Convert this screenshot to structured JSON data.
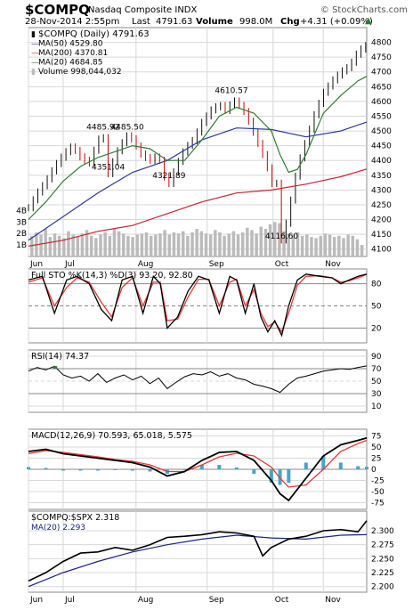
{
  "header": {
    "symbol": "$COMPQ",
    "name": "Nasdaq Composite INDX",
    "watermark": "© StockCharts.com",
    "date": "28-Nov-2014 2:55pm",
    "last_label": "Last",
    "last": "4791.63",
    "volume_label": "Volume",
    "volume": "998.0M",
    "chg_label": "Chg",
    "chg": "+4.31 (+0.09%)",
    "chg_arrow": "▲"
  },
  "colors": {
    "price_up": "#111111",
    "price_down": "#cc0000",
    "ma50": "#2a3a9a",
    "ma200": "#cc2233",
    "ma20": "#2e7d32",
    "volume": "#bbbbbb",
    "sto_k": "#000000",
    "sto_d": "#e53935",
    "rsi": "#000000",
    "rsi_fill": "#2e7d32",
    "macd": "#000000",
    "signal": "#e53935",
    "histogram": "#4aa3c8",
    "ratio": "#000000",
    "ratio_ma": "#1a237e",
    "grid": "#d8d8d8",
    "level_line": "#888888"
  },
  "chart_data": [
    {
      "type": "line",
      "panel": "price",
      "title": "$COMPQ (Daily) 4791.63",
      "x_labels": [
        "Jun",
        "Jul",
        "Aug",
        "Sep",
        "Oct",
        "Nov"
      ],
      "ylim": [
        4075,
        4850
      ],
      "y_ticks": [
        "4100",
        "4150",
        "4200",
        "4250",
        "4300",
        "4350",
        "4400",
        "4450",
        "4500",
        "4550",
        "4600",
        "4650",
        "4700",
        "4750",
        "4800"
      ],
      "volume_ticks": [
        "4B",
        "3B",
        "2B",
        "1B"
      ],
      "legend": [
        {
          "label": "$COMPQ (Daily) 4791.63",
          "marker": "▮"
        },
        {
          "label": "MA(50) 4529.80",
          "marker": "—"
        },
        {
          "label": "MA(200) 4370.81",
          "marker": "—"
        },
        {
          "label": "MA(20) 4684.85",
          "marker": "—"
        },
        {
          "label": "Volume 998,044,032",
          "marker": "▮"
        }
      ],
      "annotations": [
        {
          "text": "4485.92",
          "x": 43,
          "y": 4486
        },
        {
          "text": "4485.50",
          "x": 57,
          "y": 4486
        },
        {
          "text": "4351.04",
          "x": 46,
          "y": 4351
        },
        {
          "text": "4321.89",
          "x": 81,
          "y": 4322
        },
        {
          "text": "4610.57",
          "x": 117,
          "y": 4611
        },
        {
          "text": "4116.60",
          "x": 146,
          "y": 4117
        }
      ],
      "series": [
        {
          "name": "$COMPQ",
          "x": [
            0,
            5,
            10,
            15,
            20,
            25,
            30,
            35,
            40,
            43,
            46,
            50,
            54,
            57,
            60,
            65,
            70,
            75,
            77,
            81,
            85,
            90,
            95,
            100,
            105,
            110,
            115,
            117,
            121,
            125,
            130,
            135,
            138,
            141,
            143,
            146,
            150,
            155,
            160,
            165,
            170,
            175,
            180,
            185,
            190,
            195
          ],
          "values": [
            4240,
            4290,
            4330,
            4380,
            4420,
            4450,
            4410,
            4390,
            4470,
            4486,
            4351,
            4420,
            4460,
            4486,
            4470,
            4420,
            4400,
            4420,
            4355,
            4322,
            4380,
            4440,
            4470,
            4530,
            4570,
            4590,
            4560,
            4611,
            4590,
            4560,
            4490,
            4420,
            4370,
            4310,
            4330,
            4117,
            4230,
            4380,
            4470,
            4560,
            4630,
            4670,
            4700,
            4720,
            4770,
            4792
          ]
        },
        {
          "name": "MA(50)",
          "x": [
            0,
            20,
            40,
            60,
            80,
            100,
            120,
            140,
            160,
            180,
            195
          ],
          "values": [
            4130,
            4210,
            4290,
            4360,
            4400,
            4470,
            4510,
            4505,
            4480,
            4500,
            4530
          ]
        },
        {
          "name": "MA(200)",
          "x": [
            0,
            20,
            40,
            60,
            80,
            100,
            120,
            140,
            160,
            180,
            195
          ],
          "values": [
            4110,
            4130,
            4160,
            4180,
            4220,
            4260,
            4290,
            4300,
            4320,
            4345,
            4371
          ]
        },
        {
          "name": "MA(20)",
          "x": [
            0,
            10,
            20,
            30,
            40,
            50,
            60,
            70,
            80,
            90,
            100,
            110,
            120,
            130,
            140,
            145,
            150,
            155,
            160,
            170,
            180,
            190,
            195
          ],
          "values": [
            4200,
            4260,
            4330,
            4380,
            4410,
            4430,
            4450,
            4440,
            4400,
            4400,
            4470,
            4550,
            4580,
            4560,
            4500,
            4420,
            4360,
            4370,
            4420,
            4560,
            4620,
            4670,
            4685
          ]
        }
      ],
      "volume_values": [
        1.8,
        2.1,
        1.9,
        2.4,
        1.7,
        2.0,
        1.8,
        1.6,
        2.2,
        1.9,
        1.7,
        2.0,
        2.3,
        1.8,
        1.6,
        1.9,
        2.1,
        1.8,
        2.4,
        2.2,
        2.0,
        1.8,
        1.7,
        1.9,
        2.0,
        2.1,
        1.8,
        1.9,
        2.0,
        2.3,
        1.9,
        2.1,
        2.0,
        2.2,
        1.8,
        2.1,
        2.4,
        2.2,
        2.0,
        1.9,
        2.3,
        2.1,
        1.8,
        2.0,
        2.2,
        1.9,
        2.1,
        2.5,
        2.3,
        2.0,
        2.6,
        2.4,
        2.8,
        3.0,
        2.9,
        2.2,
        2.0,
        1.9,
        2.1,
        1.8,
        1.9,
        1.7,
        1.6,
        1.8,
        2.0,
        1.9,
        1.7,
        1.8,
        1.6,
        1.9,
        1.8,
        1.5,
        1.0
      ]
    },
    {
      "type": "line",
      "panel": "stochastic",
      "title": "Full STO %K(14,3) %D(3) 93.20, 92.80",
      "ylim": [
        0,
        100
      ],
      "y_ticks": [
        "80",
        "50",
        "20"
      ],
      "series": [
        {
          "name": "%K",
          "x": [
            0,
            8,
            15,
            22,
            28,
            35,
            42,
            48,
            54,
            60,
            66,
            72,
            76,
            80,
            86,
            92,
            98,
            104,
            110,
            116,
            120,
            125,
            130,
            134,
            138,
            142,
            146,
            150,
            155,
            160,
            168,
            175,
            180,
            185,
            190,
            195
          ],
          "values": [
            85,
            90,
            40,
            85,
            90,
            80,
            45,
            30,
            85,
            90,
            40,
            90,
            80,
            20,
            35,
            70,
            90,
            85,
            40,
            90,
            85,
            40,
            80,
            35,
            15,
            30,
            10,
            50,
            85,
            93,
            90,
            88,
            80,
            85,
            90,
            93
          ]
        },
        {
          "name": "%D",
          "x": [
            0,
            8,
            15,
            22,
            28,
            35,
            42,
            48,
            54,
            60,
            66,
            72,
            76,
            80,
            86,
            92,
            98,
            104,
            110,
            116,
            120,
            125,
            130,
            134,
            138,
            142,
            146,
            150,
            155,
            160,
            168,
            175,
            180,
            185,
            190,
            195
          ],
          "values": [
            82,
            88,
            50,
            75,
            88,
            82,
            55,
            35,
            75,
            88,
            50,
            82,
            82,
            30,
            32,
            62,
            86,
            86,
            50,
            82,
            86,
            50,
            72,
            40,
            22,
            28,
            15,
            40,
            78,
            90,
            91,
            88,
            82,
            84,
            88,
            92.8
          ]
        }
      ]
    },
    {
      "type": "line",
      "panel": "rsi",
      "title": "RSI(14) 74.37",
      "ylim": [
        0,
        100
      ],
      "y_ticks": [
        "90",
        "70",
        "50",
        "30",
        "10"
      ],
      "series": [
        {
          "name": "RSI(14)",
          "x": [
            0,
            5,
            10,
            15,
            20,
            25,
            30,
            35,
            40,
            45,
            50,
            55,
            60,
            65,
            70,
            75,
            80,
            85,
            90,
            95,
            100,
            105,
            110,
            115,
            120,
            125,
            130,
            135,
            140,
            145,
            150,
            155,
            160,
            165,
            170,
            175,
            180,
            185,
            190,
            195
          ],
          "values": [
            66,
            72,
            68,
            74,
            60,
            55,
            58,
            50,
            62,
            48,
            55,
            60,
            52,
            58,
            46,
            55,
            38,
            48,
            57,
            62,
            60,
            65,
            58,
            62,
            55,
            52,
            45,
            42,
            38,
            32,
            45,
            55,
            58,
            62,
            66,
            68,
            70,
            69,
            72,
            74.37
          ]
        }
      ]
    },
    {
      "type": "line",
      "panel": "macd",
      "title": "MACD(12,26,9) 70.593, 65.018, 5.575",
      "ylim": [
        -90,
        90
      ],
      "y_ticks": [
        "75",
        "50",
        "25",
        "0",
        "-25",
        "-50",
        "-75"
      ],
      "series": [
        {
          "name": "MACD",
          "x": [
            0,
            10,
            20,
            30,
            40,
            50,
            60,
            70,
            80,
            90,
            100,
            110,
            120,
            130,
            140,
            145,
            150,
            160,
            170,
            180,
            190,
            195
          ],
          "values": [
            40,
            45,
            35,
            30,
            25,
            20,
            15,
            5,
            -15,
            -5,
            20,
            38,
            40,
            20,
            -25,
            -55,
            -70,
            -20,
            30,
            55,
            65,
            70.6
          ]
        },
        {
          "name": "Signal",
          "x": [
            0,
            10,
            20,
            30,
            40,
            50,
            60,
            70,
            80,
            90,
            100,
            110,
            120,
            130,
            140,
            145,
            150,
            160,
            170,
            180,
            190,
            195
          ],
          "values": [
            35,
            42,
            38,
            33,
            28,
            22,
            18,
            10,
            -5,
            -5,
            10,
            28,
            36,
            30,
            5,
            -20,
            -40,
            -35,
            0,
            40,
            58,
            65.0
          ]
        }
      ],
      "histogram": [
        5,
        3,
        -3,
        -3,
        -3,
        -2,
        -3,
        -5,
        -10,
        0,
        10,
        10,
        4,
        -10,
        -30,
        -35,
        -30,
        15,
        30,
        15,
        7,
        5.6
      ]
    },
    {
      "type": "line",
      "panel": "ratio",
      "title": "$COMPQ:$SPX 2.318",
      "ylim": [
        2.19,
        2.335
      ],
      "y_ticks": [
        "2.300",
        "2.275",
        "2.250",
        "2.225",
        "2.200"
      ],
      "series": [
        {
          "name": "$COMPQ:$SPX",
          "x": [
            0,
            10,
            20,
            30,
            40,
            50,
            60,
            70,
            80,
            90,
            100,
            110,
            120,
            130,
            135,
            140,
            150,
            160,
            170,
            180,
            190,
            195
          ],
          "values": [
            2.21,
            2.225,
            2.245,
            2.26,
            2.262,
            2.27,
            2.265,
            2.275,
            2.288,
            2.29,
            2.293,
            2.298,
            2.296,
            2.29,
            2.255,
            2.27,
            2.285,
            2.29,
            2.3,
            2.302,
            2.298,
            2.318
          ]
        },
        {
          "name": "MA(20)",
          "x": [
            0,
            20,
            40,
            60,
            80,
            100,
            120,
            140,
            160,
            180,
            195
          ],
          "values": [
            2.2,
            2.225,
            2.245,
            2.262,
            2.275,
            2.285,
            2.292,
            2.287,
            2.285,
            2.292,
            2.293
          ]
        }
      ]
    }
  ],
  "panels": {
    "sto_label": "Full STO %K(14,3) %D(3) 93.20, 92.80",
    "rsi_label": "RSI(14) 74.37",
    "macd_label": "MACD(12,26,9) 70.593, 65.018, 5.575",
    "ratio_label": "$COMPQ:$SPX 2.318",
    "ratio_ma_label": "MA(20) 2.293"
  }
}
